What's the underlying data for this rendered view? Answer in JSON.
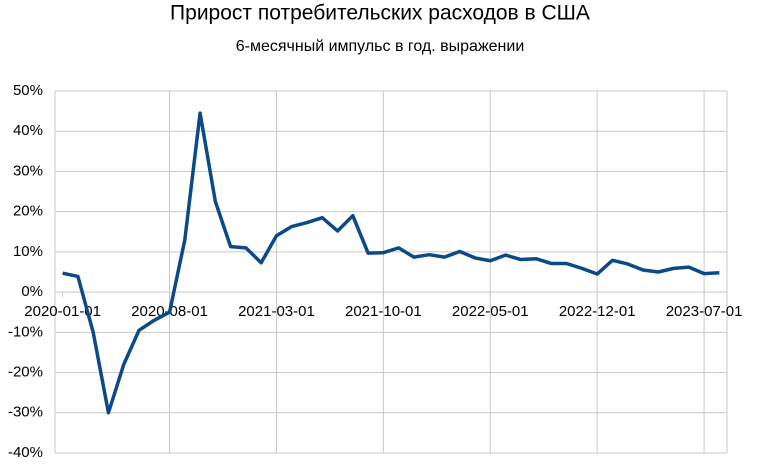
{
  "chart_data": {
    "type": "line",
    "title": "Прирост потребительских расходов в США",
    "subtitle": "6-месячный импульс в год. выражении",
    "categories": [
      "2020-01-01",
      null,
      null,
      null,
      null,
      null,
      null,
      "2020-08-01",
      null,
      null,
      null,
      null,
      null,
      null,
      "2021-03-01",
      null,
      null,
      null,
      null,
      null,
      null,
      "2021-10-01",
      null,
      null,
      null,
      null,
      null,
      null,
      "2022-05-01",
      null,
      null,
      null,
      null,
      null,
      null,
      "2022-12-01",
      null,
      null,
      null,
      null,
      null,
      null,
      "2023-07-01",
      null
    ],
    "series": [
      {
        "color": "#0b4a86",
        "values": [
          4.7,
          3.9,
          -10,
          -30,
          -18,
          -9.5,
          -7,
          -5,
          13,
          44.5,
          22.5,
          11.3,
          11,
          7.3,
          14,
          16.3,
          17.3,
          18.5,
          15.2,
          19,
          9.7,
          9.8,
          11,
          8.7,
          9.3,
          8.7,
          10.1,
          8.5,
          7.8,
          9.2,
          8.1,
          8.3,
          7.1,
          7.1,
          5.9,
          4.5,
          7.9,
          7,
          5.5,
          5,
          5.9,
          6.2,
          4.6,
          4.8
        ]
      }
    ],
    "ylim": [
      -40,
      50
    ],
    "yticks": [
      {
        "value": -40,
        "label": "-40%"
      },
      {
        "value": -30,
        "label": "-30%"
      },
      {
        "value": -20,
        "label": "-20%"
      },
      {
        "value": -10,
        "label": "-10%"
      },
      {
        "value": 0,
        "label": "0%"
      },
      {
        "value": 10,
        "label": "10%"
      },
      {
        "value": 20,
        "label": "20%"
      },
      {
        "value": 30,
        "label": "30%"
      },
      {
        "value": 40,
        "label": "40%"
      },
      {
        "value": 50,
        "label": "50%"
      }
    ],
    "grid": true
  }
}
